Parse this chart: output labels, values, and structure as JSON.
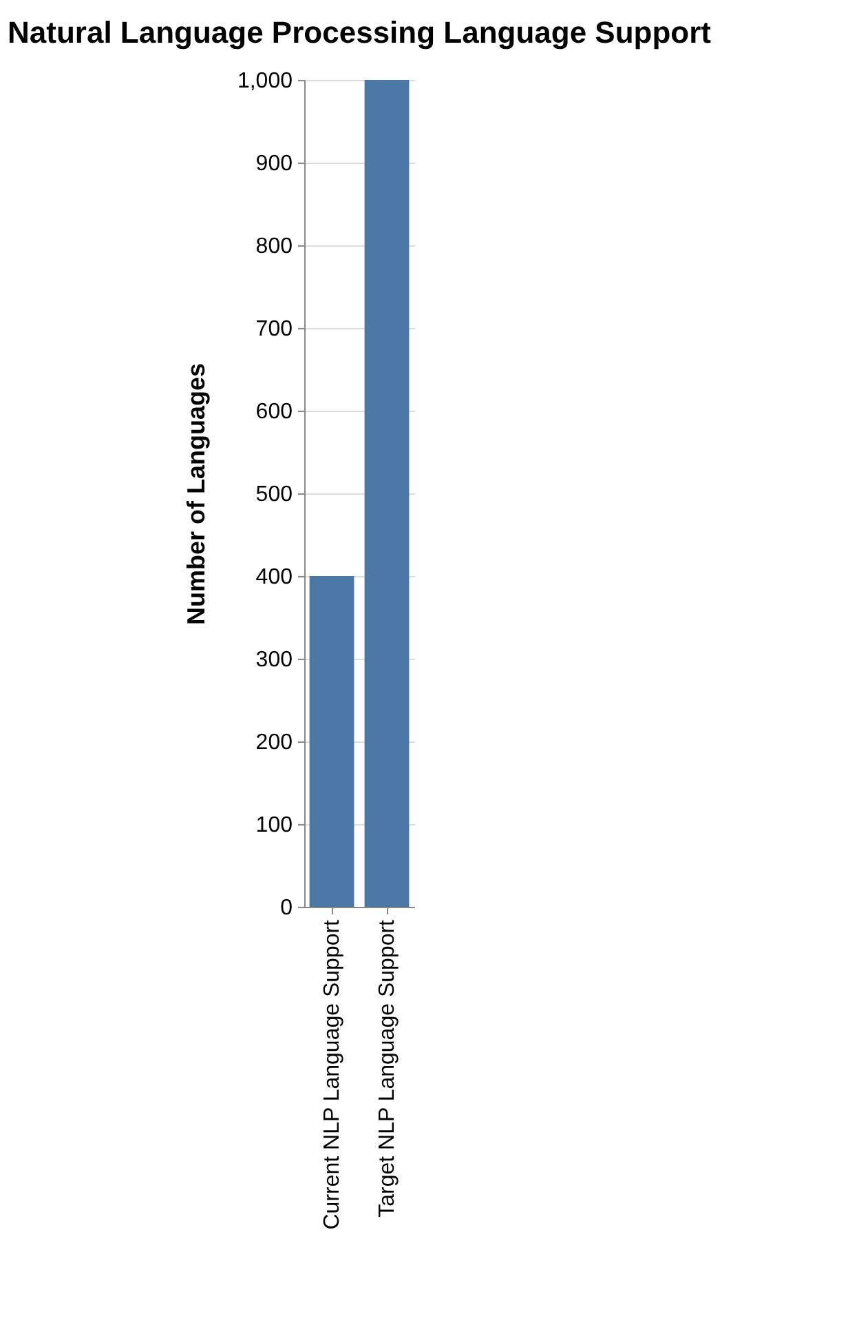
{
  "chart_data": {
    "type": "bar",
    "title": "Natural Language Processing Language Support",
    "ylabel": "Number of Languages",
    "categories": [
      "Current NLP Language Support",
      "Target NLP Language Support"
    ],
    "values": [
      400,
      1000
    ],
    "color": "#4c78a8",
    "ylim": [
      0,
      1000
    ],
    "yticks": [
      0,
      100,
      200,
      300,
      400,
      500,
      600,
      700,
      800,
      900,
      {
        "value": 1000,
        "label": "1,000"
      }
    ],
    "grid": "y"
  }
}
